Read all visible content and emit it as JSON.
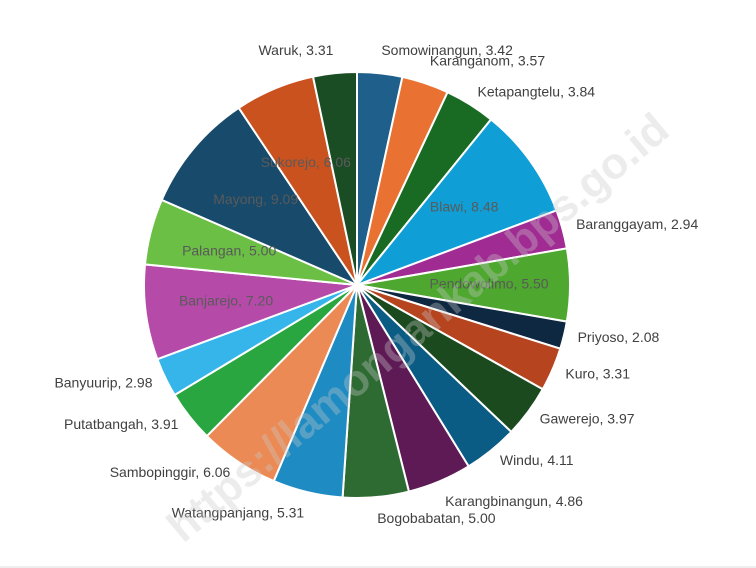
{
  "chart_data": {
    "type": "pie",
    "watermark": "https://lamongankab.bps.go.id",
    "labels": [
      "Somowinangun, 3.42",
      "Karanganom, 3.57",
      "Ketapangtelu, 3.84",
      "Blawi, 8.48",
      "Baranggayam, 2.94",
      "Pendowolimo, 5.50",
      "Priyoso, 2.08",
      "Kuro, 3.31",
      "Gawerejo, 3.97",
      "Windu, 4.11",
      "Karangbinangun, 4.86",
      "Bogobabatan, 5.00",
      "Watangpanjang, 5.31",
      "Sambopinggir, 6.06",
      "Putatbangah, 3.91",
      "Banyuurip, 2.98",
      "Banjarejo, 7.20",
      "Palangan, 5.00",
      "Mayong, 9.09",
      "Sukorejo, 6.06",
      "Waruk, 3.31"
    ],
    "values": [
      3.42,
      3.57,
      3.84,
      8.48,
      2.94,
      5.5,
      2.08,
      3.31,
      3.97,
      4.11,
      4.86,
      5.0,
      5.31,
      6.06,
      3.91,
      2.98,
      7.2,
      5.0,
      9.09,
      6.06,
      3.31
    ],
    "colors": [
      "#1f5f8b",
      "#e97132",
      "#196b24",
      "#0f9ed5",
      "#a02b93",
      "#4ea72e",
      "#0e2841",
      "#b5441f",
      "#1b4a1f",
      "#0b5c84",
      "#5e1a55",
      "#2e6b33",
      "#1e8bc3",
      "#ec8a56",
      "#2aa640",
      "#36b5ea",
      "#b64aa8",
      "#6bbf45",
      "#174a6b",
      "#c9521f",
      "#1b4d25"
    ]
  }
}
